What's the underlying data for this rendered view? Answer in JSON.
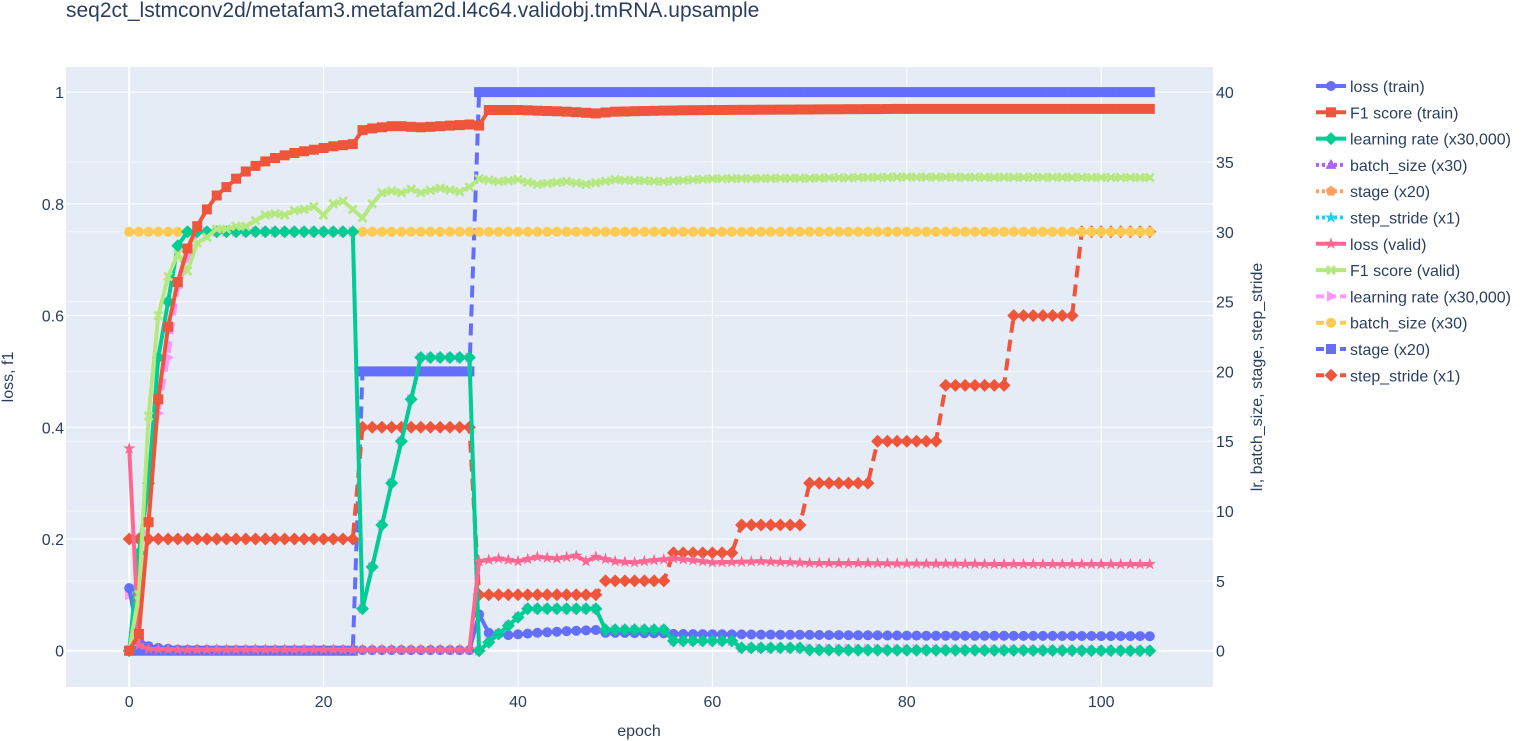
{
  "chart_data": {
    "type": "line",
    "title": "seq2ct_lstmconv2d/metafam3.metafam2d.l4c64.validobj.tmRNA.upsample",
    "xlabel": "epoch",
    "ylabel_left": "loss, f1",
    "ylabel_right": "lr, batch_size, stage, step_stride",
    "xlim": [
      -6.5,
      111.5
    ],
    "ylim_left": [
      -0.065,
      1.045
    ],
    "ylim_right": [
      -2.6,
      41.8
    ],
    "x_ticks": [
      0,
      20,
      40,
      60,
      80,
      100
    ],
    "y_left_ticks": [
      0,
      0.2,
      0.4,
      0.6,
      0.8,
      1
    ],
    "y_right_ticks": [
      0,
      5,
      10,
      15,
      20,
      25,
      30,
      35,
      40
    ],
    "grid": true,
    "legend_position": "right",
    "colors": {
      "plot_bg": "#e5ecf6",
      "grid": "#ffffff",
      "blue": "#636efa",
      "red": "#ef553b",
      "green": "#00cc96",
      "purple": "#ab63fa",
      "orange": "#ffa15a",
      "cyan": "#19d3f3",
      "pink": "#ff6692",
      "lime": "#b6e880",
      "magenta": "#ff97ff",
      "yellow": "#fecb52"
    },
    "series": [
      {
        "name": "loss (train)",
        "axis": "left",
        "color": "#636efa",
        "marker": "circle",
        "dash": "solid",
        "width": 4,
        "points": [
          [
            0,
            0.112
          ],
          [
            1,
            0.02
          ],
          [
            2,
            0.008
          ],
          [
            3,
            0.005
          ],
          [
            5,
            0.002
          ],
          [
            10,
            0.001
          ],
          [
            35,
            0.001
          ],
          [
            36,
            0.065
          ],
          [
            37,
            0.032
          ],
          [
            39,
            0.028
          ],
          [
            42,
            0.032
          ],
          [
            45,
            0.035
          ],
          [
            48,
            0.037
          ],
          [
            49,
            0.032
          ],
          [
            55,
            0.031
          ],
          [
            56,
            0.03
          ],
          [
            80,
            0.027
          ],
          [
            105,
            0.026
          ]
        ]
      },
      {
        "name": "F1 score (train)",
        "axis": "left",
        "color": "#ef553b",
        "marker": "square",
        "dash": "solid",
        "width": 4,
        "points": [
          [
            0,
            0.0
          ],
          [
            1,
            0.03
          ],
          [
            2,
            0.23
          ],
          [
            3,
            0.45
          ],
          [
            4,
            0.58
          ],
          [
            5,
            0.66
          ],
          [
            6,
            0.72
          ],
          [
            7,
            0.76
          ],
          [
            8,
            0.79
          ],
          [
            9,
            0.815
          ],
          [
            10,
            0.83
          ],
          [
            11,
            0.845
          ],
          [
            12,
            0.858
          ],
          [
            13,
            0.868
          ],
          [
            14,
            0.876
          ],
          [
            15,
            0.882
          ],
          [
            16,
            0.887
          ],
          [
            17,
            0.891
          ],
          [
            18,
            0.894
          ],
          [
            19,
            0.897
          ],
          [
            20,
            0.9
          ],
          [
            21,
            0.903
          ],
          [
            22,
            0.905
          ],
          [
            23,
            0.907
          ],
          [
            24,
            0.932
          ],
          [
            25,
            0.935
          ],
          [
            26,
            0.937
          ],
          [
            27,
            0.939
          ],
          [
            28,
            0.939
          ],
          [
            29,
            0.938
          ],
          [
            30,
            0.937
          ],
          [
            31,
            0.938
          ],
          [
            32,
            0.939
          ],
          [
            33,
            0.94
          ],
          [
            34,
            0.941
          ],
          [
            35,
            0.942
          ],
          [
            36,
            0.94
          ],
          [
            37,
            0.968
          ],
          [
            40,
            0.968
          ],
          [
            45,
            0.965
          ],
          [
            48,
            0.962
          ],
          [
            50,
            0.965
          ],
          [
            55,
            0.967
          ],
          [
            60,
            0.968
          ],
          [
            80,
            0.97
          ],
          [
            105,
            0.97
          ]
        ]
      },
      {
        "name": "learning rate (x30,000)",
        "axis": "right",
        "color": "#00cc96",
        "marker": "diamond",
        "dash": "solid",
        "width": 4,
        "points": [
          [
            0,
            0
          ],
          [
            1,
            7
          ],
          [
            2,
            12
          ],
          [
            3,
            21
          ],
          [
            4,
            25
          ],
          [
            5,
            29
          ],
          [
            6,
            30
          ],
          [
            23,
            30
          ],
          [
            24,
            3
          ],
          [
            25,
            6
          ],
          [
            26,
            9
          ],
          [
            27,
            12
          ],
          [
            28,
            15
          ],
          [
            29,
            18
          ],
          [
            30,
            21
          ],
          [
            35,
            21
          ],
          [
            36,
            0
          ],
          [
            37,
            0.6
          ],
          [
            38,
            1.2
          ],
          [
            39,
            1.8
          ],
          [
            40,
            2.4
          ],
          [
            41,
            3.0
          ],
          [
            42,
            3.0
          ],
          [
            48,
            3.0
          ],
          [
            49,
            1.5
          ],
          [
            55,
            1.5
          ],
          [
            56,
            0.7
          ],
          [
            62,
            0.7
          ],
          [
            63,
            0.2
          ],
          [
            69,
            0.2
          ],
          [
            70,
            0.05
          ],
          [
            105,
            0
          ]
        ]
      },
      {
        "name": "batch_size (x30)",
        "axis": "right",
        "color": "#ab63fa",
        "marker": "triangle-up",
        "dash": "dot",
        "width": 4,
        "points": []
      },
      {
        "name": "stage (x20)",
        "axis": "right",
        "color": "#ffa15a",
        "marker": "pentagon",
        "dash": "dot",
        "width": 4,
        "points": []
      },
      {
        "name": "step_stride (x1)",
        "axis": "right",
        "color": "#19d3f3",
        "marker": "star",
        "dash": "dot",
        "width": 4,
        "points": []
      },
      {
        "name": "loss (valid)",
        "axis": "left",
        "color": "#ff6692",
        "marker": "star",
        "dash": "solid",
        "width": 4,
        "points": [
          [
            0,
            0.362
          ],
          [
            1,
            0.01
          ],
          [
            2,
            0.003
          ],
          [
            5,
            0.002
          ],
          [
            35,
            0.002
          ],
          [
            36,
            0.16
          ],
          [
            38,
            0.165
          ],
          [
            40,
            0.16
          ],
          [
            42,
            0.168
          ],
          [
            44,
            0.165
          ],
          [
            46,
            0.17
          ],
          [
            47,
            0.16
          ],
          [
            48,
            0.168
          ],
          [
            50,
            0.16
          ],
          [
            52,
            0.158
          ],
          [
            54,
            0.162
          ],
          [
            56,
            0.165
          ],
          [
            58,
            0.162
          ],
          [
            60,
            0.158
          ],
          [
            65,
            0.16
          ],
          [
            70,
            0.157
          ],
          [
            80,
            0.156
          ],
          [
            90,
            0.155
          ],
          [
            105,
            0.155
          ]
        ]
      },
      {
        "name": "F1 score (valid)",
        "axis": "left",
        "color": "#b6e880",
        "marker": "x",
        "dash": "solid",
        "width": 4,
        "points": [
          [
            0,
            0.0
          ],
          [
            1,
            0.1
          ],
          [
            2,
            0.42
          ],
          [
            3,
            0.6
          ],
          [
            4,
            0.67
          ],
          [
            5,
            0.71
          ],
          [
            6,
            0.68
          ],
          [
            7,
            0.73
          ],
          [
            8,
            0.74
          ],
          [
            9,
            0.755
          ],
          [
            10,
            0.755
          ],
          [
            11,
            0.76
          ],
          [
            12,
            0.76
          ],
          [
            13,
            0.77
          ],
          [
            14,
            0.78
          ],
          [
            15,
            0.782
          ],
          [
            16,
            0.78
          ],
          [
            17,
            0.788
          ],
          [
            18,
            0.79
          ],
          [
            19,
            0.795
          ],
          [
            20,
            0.78
          ],
          [
            21,
            0.8
          ],
          [
            22,
            0.805
          ],
          [
            23,
            0.79
          ],
          [
            24,
            0.775
          ],
          [
            25,
            0.8
          ],
          [
            26,
            0.82
          ],
          [
            27,
            0.823
          ],
          [
            28,
            0.82
          ],
          [
            29,
            0.826
          ],
          [
            30,
            0.82
          ],
          [
            32,
            0.828
          ],
          [
            34,
            0.822
          ],
          [
            35,
            0.83
          ],
          [
            36,
            0.845
          ],
          [
            38,
            0.84
          ],
          [
            40,
            0.843
          ],
          [
            42,
            0.835
          ],
          [
            45,
            0.84
          ],
          [
            47,
            0.835
          ],
          [
            50,
            0.843
          ],
          [
            55,
            0.84
          ],
          [
            60,
            0.845
          ],
          [
            70,
            0.846
          ],
          [
            80,
            0.848
          ],
          [
            105,
            0.847
          ]
        ]
      },
      {
        "name": "learning rate (x30,000)",
        "axis": "right",
        "color": "#ff97ff",
        "marker": "triangle-right",
        "dash": "dash",
        "width": 4,
        "points": [
          [
            0,
            4
          ],
          [
            1,
            5
          ],
          [
            2,
            13
          ],
          [
            3,
            17
          ],
          [
            4,
            21
          ],
          [
            5,
            26
          ],
          [
            6,
            28
          ],
          [
            7,
            30
          ],
          [
            23,
            30
          ],
          [
            24,
            3
          ],
          [
            25,
            6
          ],
          [
            26,
            9
          ],
          [
            27,
            12
          ],
          [
            28,
            15
          ],
          [
            29,
            18
          ],
          [
            30,
            21
          ],
          [
            35,
            21
          ],
          [
            36,
            0
          ],
          [
            37,
            0.6
          ],
          [
            38,
            1.2
          ],
          [
            39,
            1.8
          ],
          [
            40,
            2.4
          ],
          [
            41,
            3.0
          ],
          [
            48,
            3.0
          ],
          [
            49,
            1.5
          ],
          [
            55,
            1.5
          ],
          [
            56,
            0.7
          ],
          [
            62,
            0.7
          ],
          [
            63,
            0.2
          ],
          [
            105,
            0
          ]
        ]
      },
      {
        "name": "batch_size (x30)",
        "axis": "right",
        "color": "#fecb52",
        "marker": "circle",
        "dash": "dash",
        "width": 4,
        "points": [
          [
            0,
            30
          ],
          [
            105,
            30
          ]
        ]
      },
      {
        "name": "stage (x20)",
        "axis": "right",
        "color": "#636efa",
        "marker": "square",
        "dash": "dash",
        "width": 4,
        "points": [
          [
            0,
            0
          ],
          [
            23,
            0
          ],
          [
            24,
            20
          ],
          [
            35,
            20
          ],
          [
            36,
            40
          ],
          [
            105,
            40
          ]
        ]
      },
      {
        "name": "step_stride (x1)",
        "axis": "right",
        "color": "#ef553b",
        "marker": "diamond",
        "dash": "dash",
        "width": 4,
        "points": [
          [
            0,
            8
          ],
          [
            23,
            8
          ],
          [
            24,
            16
          ],
          [
            35,
            16
          ],
          [
            36,
            4
          ],
          [
            48,
            4
          ],
          [
            49,
            5
          ],
          [
            55,
            5
          ],
          [
            56,
            7
          ],
          [
            62,
            7
          ],
          [
            63,
            9
          ],
          [
            69,
            9
          ],
          [
            70,
            12
          ],
          [
            76,
            12
          ],
          [
            77,
            15
          ],
          [
            83,
            15
          ],
          [
            84,
            19
          ],
          [
            90,
            19
          ],
          [
            91,
            24
          ],
          [
            97,
            24
          ],
          [
            98,
            30
          ],
          [
            105,
            30
          ]
        ]
      }
    ]
  }
}
